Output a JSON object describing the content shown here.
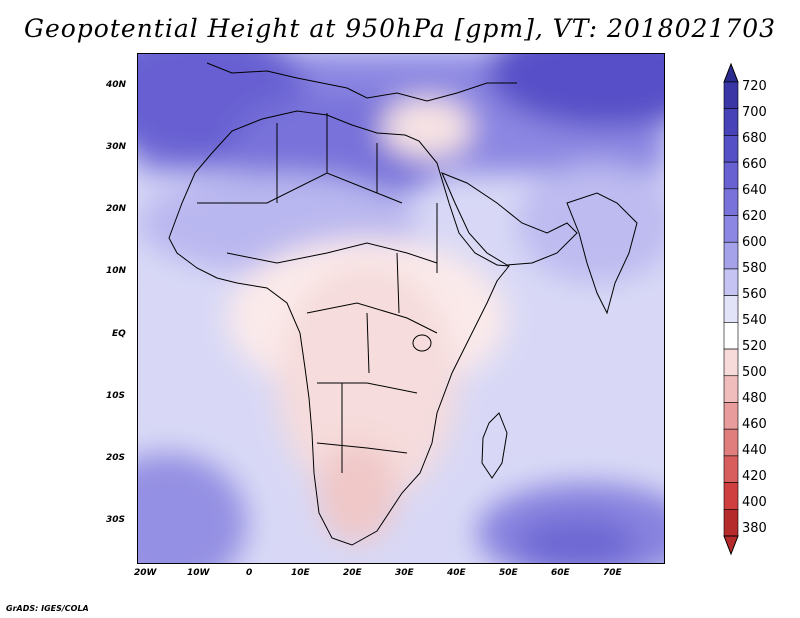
{
  "title": "Geopotential Height at 950hPa [gpm], VT: 2018021703",
  "credit": "GrADS: IGES/COLA",
  "map": {
    "lon_range": [
      -25,
      80
    ],
    "lat_range": [
      -37,
      45
    ],
    "x_ticks": [
      "20W",
      "10W",
      "0",
      "10E",
      "20E",
      "30E",
      "40E",
      "50E",
      "60E",
      "70E"
    ],
    "y_ticks": [
      "40N",
      "30N",
      "20N",
      "10N",
      "EQ",
      "10S",
      "20S",
      "30S"
    ]
  },
  "colorbar": {
    "labels": [
      "720",
      "700",
      "680",
      "660",
      "640",
      "620",
      "600",
      "580",
      "560",
      "540",
      "520",
      "500",
      "480",
      "460",
      "440",
      "420",
      "400",
      "380"
    ],
    "colors": {
      "c720": "#2b2a8f",
      "c700": "#3a36a6",
      "c680": "#4742b8",
      "c660": "#5650c7",
      "c640": "#6761d2",
      "c620": "#7872da",
      "c600": "#8c87e2",
      "c580": "#a5a2ea",
      "c560": "#c4c3f2",
      "c540": "#e2e2f8",
      "c520": "#ffffff",
      "c500": "#f7dada",
      "c480": "#f0bcbc",
      "c460": "#e99c9c",
      "c440": "#e07d7d",
      "c420": "#d85e5e",
      "c400": "#cf3f3f",
      "c380": "#b52a2a"
    }
  }
}
